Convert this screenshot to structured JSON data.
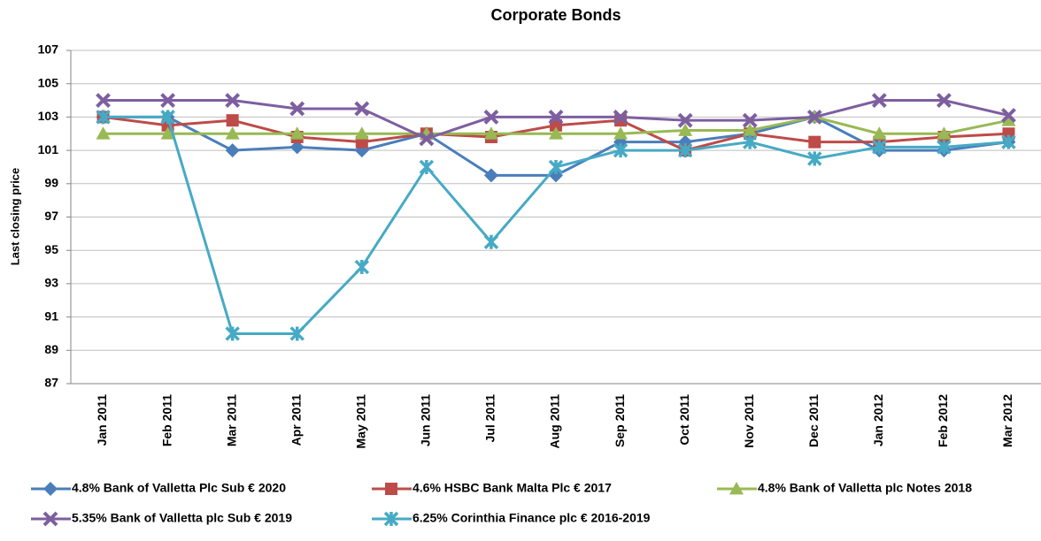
{
  "chart_data": {
    "type": "line",
    "title": "Corporate Bonds",
    "y_label": "Last closing price",
    "categories": [
      "Jan 2011",
      "Feb 2011",
      "Mar 2011",
      "Apr 2011",
      "May 2011",
      "Jun 2011",
      "Jul 2011",
      "Aug 2011",
      "Sep 2011",
      "Oct 2011",
      "Nov 2011",
      "Dec 2011",
      "Jan 2012",
      "Feb 2012",
      "Mar 2012"
    ],
    "ylim": [
      87,
      107
    ],
    "yticks": [
      87,
      89,
      91,
      93,
      95,
      97,
      99,
      101,
      103,
      105,
      107
    ],
    "grid": true,
    "legend": "bottom",
    "series": [
      {
        "name": "4.8% Bank of Valletta Plc Sub € 2020",
        "color": "#4a7ebb",
        "marker": "diamond",
        "values": [
          103,
          103,
          101,
          101.2,
          101,
          102,
          99.5,
          99.5,
          101.5,
          101.5,
          102,
          103,
          101,
          101,
          101.5
        ]
      },
      {
        "name": "4.6% HSBC Bank Malta Plc € 2017",
        "color": "#be4b48",
        "marker": "square",
        "values": [
          103,
          102.5,
          102.8,
          101.8,
          101.5,
          102,
          101.8,
          102.5,
          102.8,
          101,
          102,
          101.5,
          101.5,
          101.8,
          102
        ]
      },
      {
        "name": "4.8% Bank of Valletta plc Notes 2018",
        "color": "#98b954",
        "marker": "triangle",
        "values": [
          102,
          102,
          102,
          102,
          102,
          102,
          102,
          102,
          102,
          102.2,
          102.2,
          103,
          102,
          102,
          102.8
        ]
      },
      {
        "name": "5.35% Bank of Valletta plc Sub € 2019",
        "color": "#7d5fa0",
        "marker": "x",
        "values": [
          104,
          104,
          104,
          103.5,
          103.5,
          101.7,
          103,
          103,
          103,
          102.8,
          102.8,
          103,
          104,
          104,
          103.1
        ]
      },
      {
        "name": "6.25% Corinthia Finance plc € 2016-2019",
        "color": "#46aac5",
        "marker": "star",
        "values": [
          103,
          103,
          90,
          90,
          94,
          100,
          95.5,
          100,
          101,
          101,
          101.5,
          100.5,
          101.2,
          101.2,
          101.5
        ]
      }
    ]
  }
}
